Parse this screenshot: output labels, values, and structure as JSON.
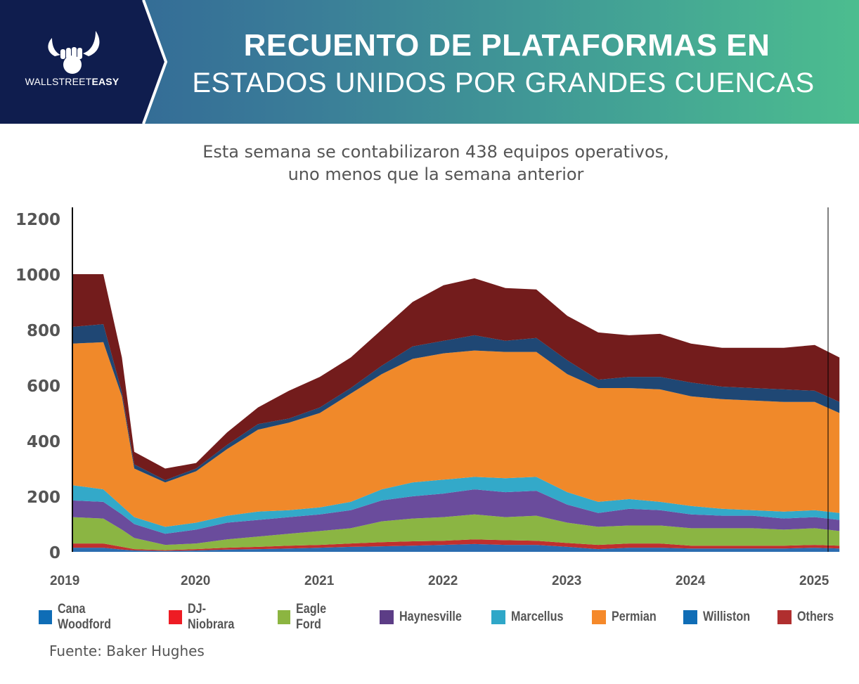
{
  "header": {
    "brand_light": "WALLSTREET",
    "brand_bold": "EASY",
    "title_line1": "RECUENTO DE PLATAFORMAS EN",
    "title_line2": "ESTADOS UNIDOS POR GRANDES CUENCAS"
  },
  "subtitle": {
    "line1": "Esta semana se contabilizaron 438 equipos operativos,",
    "line2": "uno menos que la semana anterior"
  },
  "source": "Fuente: Baker Hughes",
  "chart_data": {
    "type": "area",
    "stacked": true,
    "title": "Recuento de plataformas en Estados Unidos por grandes cuencas",
    "xlabel": "",
    "ylabel": "",
    "ylim": [
      0,
      1200
    ],
    "xlim": [
      2019,
      2025.2
    ],
    "yticks": [
      0,
      200,
      400,
      600,
      800,
      1000,
      1200
    ],
    "xticks": [
      "2019",
      "2020",
      "2021",
      "2022",
      "2023",
      "2024",
      "2025"
    ],
    "grid": false,
    "legend_position": "bottom",
    "x": [
      2019.0,
      2019.25,
      2019.4,
      2019.5,
      2019.75,
      2020.0,
      2020.25,
      2020.5,
      2020.75,
      2021.0,
      2021.25,
      2021.5,
      2021.75,
      2022.0,
      2022.25,
      2022.5,
      2022.75,
      2023.0,
      2023.25,
      2023.5,
      2023.75,
      2024.0,
      2024.25,
      2024.5,
      2024.75,
      2025.0,
      2025.2
    ],
    "series": [
      {
        "name": "Cana Woodford",
        "color": "#2b6cb0",
        "values": [
          15,
          15,
          8,
          5,
          3,
          5,
          8,
          10,
          12,
          15,
          18,
          20,
          22,
          25,
          28,
          25,
          25,
          18,
          10,
          15,
          15,
          12,
          12,
          12,
          12,
          15,
          12
        ]
      },
      {
        "name": "DJ-Niobrara",
        "color": "#c0302e",
        "values": [
          15,
          15,
          10,
          5,
          3,
          5,
          7,
          8,
          10,
          10,
          12,
          15,
          16,
          15,
          17,
          17,
          15,
          14,
          15,
          15,
          15,
          10,
          10,
          10,
          10,
          10,
          10
        ]
      },
      {
        "name": "Eagle Ford",
        "color": "#8bb543",
        "values": [
          95,
          90,
          62,
          40,
          19,
          20,
          30,
          37,
          43,
          50,
          55,
          75,
          82,
          85,
          90,
          83,
          90,
          73,
          65,
          65,
          65,
          63,
          63,
          63,
          58,
          60,
          53
        ]
      },
      {
        "name": "Haynesville",
        "color": "#6a4c9c",
        "values": [
          60,
          60,
          55,
          50,
          40,
          50,
          60,
          60,
          60,
          60,
          65,
          75,
          80,
          85,
          90,
          90,
          90,
          65,
          50,
          60,
          55,
          50,
          45,
          45,
          40,
          40,
          40
        ]
      },
      {
        "name": "Marcellus",
        "color": "#33a9c9",
        "values": [
          55,
          45,
          30,
          25,
          25,
          25,
          25,
          30,
          25,
          25,
          30,
          40,
          50,
          50,
          45,
          50,
          50,
          45,
          40,
          35,
          30,
          30,
          25,
          20,
          25,
          25,
          25
        ]
      },
      {
        "name": "Permian",
        "color": "#f0892a",
        "values": [
          510,
          530,
          395,
          175,
          160,
          185,
          240,
          295,
          315,
          340,
          390,
          415,
          445,
          455,
          455,
          455,
          450,
          425,
          410,
          400,
          405,
          395,
          395,
          395,
          395,
          390,
          360
        ]
      },
      {
        "name": "Williston",
        "color": "#1f4774",
        "values": [
          60,
          65,
          15,
          15,
          8,
          10,
          15,
          20,
          15,
          20,
          20,
          30,
          45,
          45,
          55,
          40,
          50,
          50,
          30,
          40,
          45,
          50,
          45,
          45,
          45,
          40,
          40
        ]
      },
      {
        "name": "Others",
        "color": "#731c1c",
        "values": [
          190,
          180,
          125,
          45,
          42,
          20,
          45,
          60,
          100,
          110,
          110,
          130,
          160,
          200,
          205,
          190,
          175,
          160,
          170,
          150,
          155,
          140,
          140,
          145,
          150,
          165,
          160
        ]
      }
    ]
  }
}
